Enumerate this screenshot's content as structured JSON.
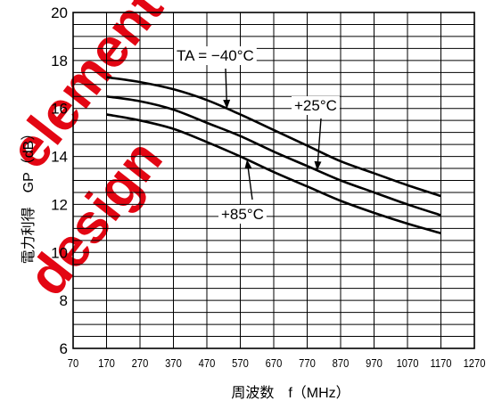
{
  "watermark": {
    "words": [
      "element",
      "design"
    ],
    "color": "#e30613"
  },
  "chart_data": {
    "type": "line",
    "title": "",
    "xlabel": "周波数　f（MHz）",
    "ylabel": "電力利得　GP（dB）",
    "xlim": [
      70,
      1270
    ],
    "ylim": [
      6,
      20
    ],
    "x_ticks": [
      70,
      170,
      270,
      370,
      470,
      570,
      670,
      770,
      870,
      970,
      1070,
      1170,
      1270
    ],
    "y_ticks": [
      6,
      8,
      10,
      12,
      14,
      16,
      18,
      20
    ],
    "grid": true,
    "x": [
      170,
      270,
      370,
      470,
      570,
      670,
      770,
      870,
      970,
      1070,
      1170
    ],
    "series": [
      {
        "name": "TA = −40°C",
        "values": [
          17.3,
          17.1,
          16.8,
          16.35,
          15.75,
          15.1,
          14.45,
          13.8,
          13.3,
          12.8,
          12.35
        ]
      },
      {
        "name": "+25°C",
        "values": [
          16.5,
          16.3,
          15.95,
          15.4,
          14.85,
          14.2,
          13.6,
          13.0,
          12.5,
          12.0,
          11.55
        ]
      },
      {
        "name": "+85°C",
        "values": [
          15.75,
          15.5,
          15.15,
          14.6,
          14.0,
          13.35,
          12.75,
          12.15,
          11.65,
          11.2,
          10.8
        ]
      }
    ],
    "annotations": [
      {
        "text": "TA = −40°C",
        "series": 0,
        "x": 530
      },
      {
        "text": "+25°C",
        "series": 1,
        "x": 800
      },
      {
        "text": "+85°C",
        "series": 2,
        "x": 590
      }
    ],
    "colors": {
      "line": "#000000",
      "grid": "#000000"
    }
  }
}
